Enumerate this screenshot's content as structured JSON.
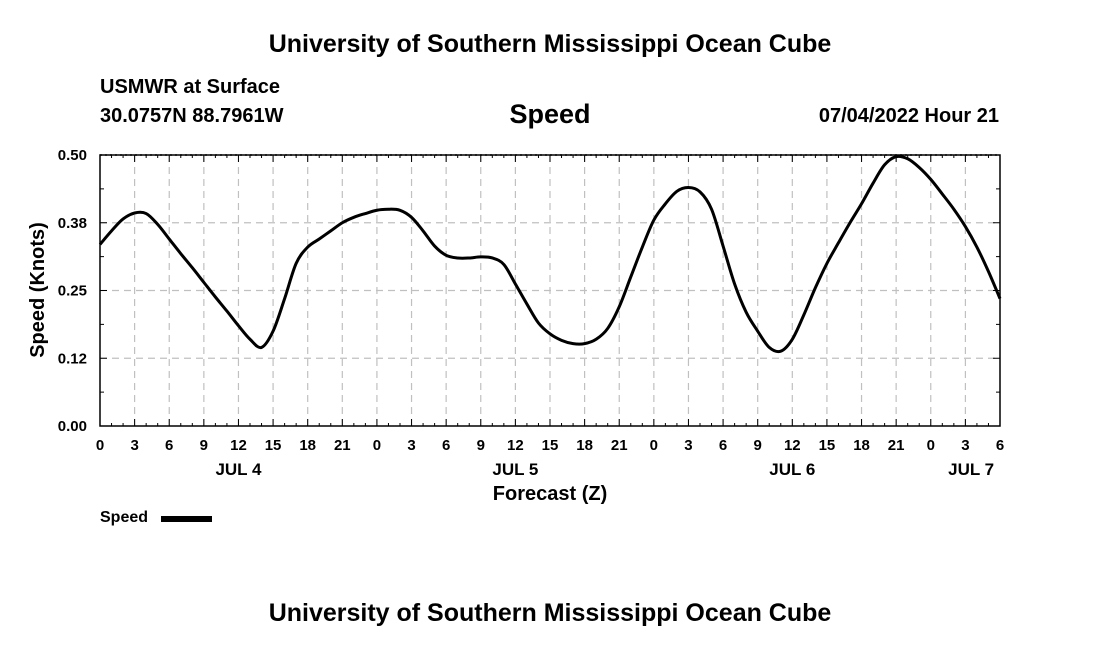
{
  "header": {
    "title": "University of Southern Mississippi Ocean Cube",
    "station": "USMWR at Surface",
    "coords": "30.0757N  88.7961W",
    "variable": "Speed",
    "datetime": "07/04/2022 Hour 21"
  },
  "footer": {
    "title": "University of Southern Mississippi Ocean Cube"
  },
  "legend": {
    "label": "Speed"
  },
  "chart_data": {
    "type": "line",
    "title": "Speed",
    "xlabel": "Forecast (Z)",
    "ylabel": "Speed (Knots)",
    "xlim_hours": [
      0,
      78
    ],
    "ylim": [
      0,
      0.5
    ],
    "yticks": [
      "0.00",
      "0.12",
      "0.25",
      "0.38",
      "0.50"
    ],
    "yticks_values": [
      0,
      0.125,
      0.25,
      0.375,
      0.5
    ],
    "xtick_labels": [
      "0",
      "3",
      "6",
      "9",
      "12",
      "15",
      "18",
      "21",
      "0",
      "3",
      "6",
      "9",
      "12",
      "15",
      "18",
      "21",
      "0",
      "3",
      "6",
      "9",
      "12",
      "15",
      "18",
      "21",
      "0",
      "3",
      "6"
    ],
    "xtick_hours": [
      0,
      3,
      6,
      9,
      12,
      15,
      18,
      21,
      24,
      27,
      30,
      33,
      36,
      39,
      42,
      45,
      48,
      51,
      54,
      57,
      60,
      63,
      66,
      69,
      72,
      75,
      78
    ],
    "day_labels": [
      {
        "label": "JUL 4",
        "hour": 12
      },
      {
        "label": "JUL 5",
        "hour": 36
      },
      {
        "label": "JUL 6",
        "hour": 60
      },
      {
        "label": "JUL 7",
        "hour": 75.5
      }
    ],
    "grid": true,
    "colors": {
      "line": "#000000",
      "grid": "#c0c0c0"
    },
    "series": [
      {
        "name": "Speed",
        "x": [
          0,
          1,
          2,
          3,
          4,
          5,
          6,
          7,
          8,
          9,
          10,
          11,
          12,
          13,
          14,
          15,
          16,
          17,
          18,
          19,
          20,
          21,
          22,
          23,
          24,
          25,
          26,
          27,
          28,
          29,
          30,
          31,
          32,
          33,
          34,
          35,
          36,
          37,
          38,
          39,
          40,
          41,
          42,
          43,
          44,
          45,
          46,
          47,
          48,
          49,
          50,
          51,
          52,
          53,
          54,
          55,
          56,
          57,
          58,
          59,
          60,
          61,
          62,
          63,
          64,
          65,
          66,
          67,
          68,
          69,
          70,
          71,
          72,
          73,
          74,
          75,
          76,
          77,
          78
        ],
        "y": [
          0.335,
          0.36,
          0.382,
          0.393,
          0.392,
          0.372,
          0.345,
          0.318,
          0.292,
          0.265,
          0.238,
          0.212,
          0.185,
          0.16,
          0.145,
          0.175,
          0.235,
          0.3,
          0.33,
          0.345,
          0.36,
          0.375,
          0.385,
          0.392,
          0.398,
          0.4,
          0.398,
          0.385,
          0.36,
          0.332,
          0.315,
          0.31,
          0.31,
          0.312,
          0.31,
          0.298,
          0.262,
          0.225,
          0.19,
          0.17,
          0.158,
          0.152,
          0.152,
          0.16,
          0.18,
          0.22,
          0.275,
          0.33,
          0.38,
          0.41,
          0.433,
          0.44,
          0.432,
          0.4,
          0.332,
          0.262,
          0.21,
          0.175,
          0.145,
          0.138,
          0.16,
          0.205,
          0.255,
          0.3,
          0.338,
          0.375,
          0.41,
          0.448,
          0.482,
          0.497,
          0.493,
          0.477,
          0.455,
          0.428,
          0.4,
          0.368,
          0.33,
          0.285,
          0.235
        ]
      }
    ]
  }
}
